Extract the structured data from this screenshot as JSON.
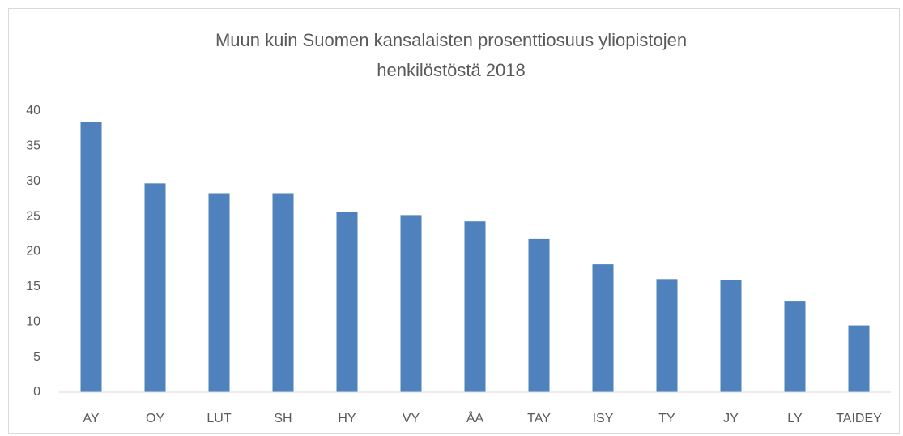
{
  "chart_data": {
    "type": "bar",
    "title": [
      "Muun kuin Suomen kansalaisten prosenttiosuus yliopistojen",
      "henkilöstöstä 2018"
    ],
    "categories": [
      "AY",
      "OY",
      "LUT",
      "SH",
      "HY",
      "VY",
      "ÅA",
      "TAY",
      "ISY",
      "TY",
      "JY",
      "LY",
      "TAIDEY"
    ],
    "values": [
      38.4,
      29.7,
      28.3,
      28.3,
      25.6,
      25.2,
      24.3,
      21.8,
      18.2,
      16.1,
      16.0,
      12.9,
      9.5
    ],
    "color": "#4f81bd",
    "ylim": [
      0,
      40
    ],
    "yticks": [
      0,
      5,
      10,
      15,
      20,
      25,
      30,
      35,
      40
    ],
    "grid": false
  }
}
